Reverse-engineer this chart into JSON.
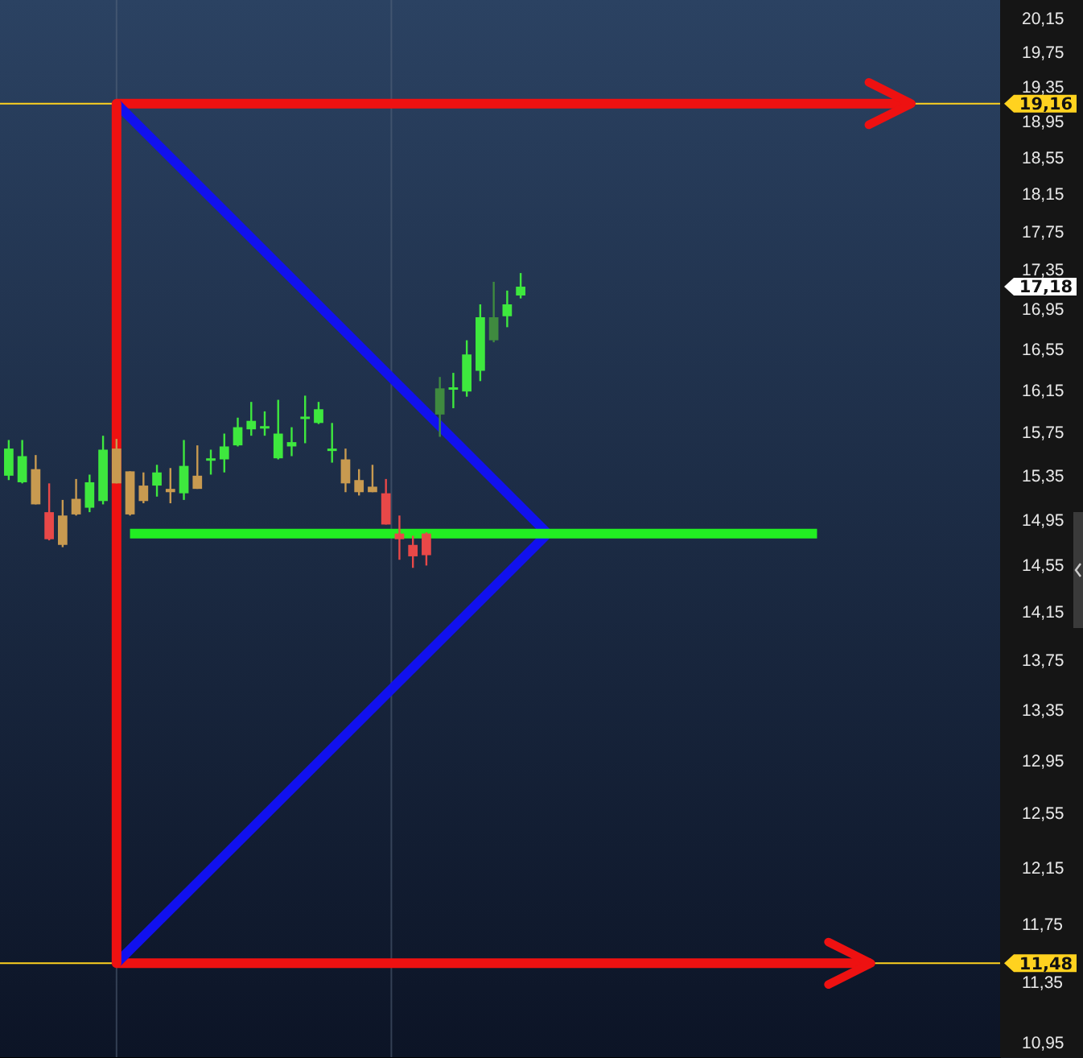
{
  "chart_data": {
    "type": "candlestick",
    "categories": [
      null,
      null,
      null,
      null,
      null,
      null,
      null,
      null,
      null,
      null,
      null,
      null,
      null,
      null,
      null,
      null,
      null,
      null,
      null,
      null,
      null,
      null,
      null,
      null,
      null,
      null,
      null,
      null,
      null,
      null,
      null,
      null,
      null,
      null,
      null,
      null,
      null,
      null,
      null,
      null,
      null,
      null,
      null,
      null,
      null,
      null,
      null,
      null,
      null,
      null,
      null,
      null,
      null,
      null,
      null,
      null,
      null,
      null,
      null,
      null,
      null,
      null,
      null,
      null,
      null,
      null,
      null,
      null,
      null,
      null,
      null,
      null,
      null,
      null
    ],
    "ohlc": [
      [
        15.35,
        15.68,
        15.31,
        15.6
      ],
      [
        15.29,
        15.68,
        15.28,
        15.53
      ],
      [
        15.41,
        15.54,
        15.09,
        15.09
      ],
      [
        15.02,
        15.28,
        14.77,
        14.78
      ],
      [
        14.99,
        15.13,
        14.71,
        14.73
      ],
      [
        15.14,
        15.32,
        14.99,
        15.0
      ],
      [
        15.06,
        15.36,
        15.02,
        15.29
      ],
      [
        15.12,
        15.72,
        15.09,
        15.59
      ],
      [
        15.6,
        15.69,
        15.28,
        15.28
      ],
      [
        15.39,
        15.39,
        14.99,
        15.0
      ],
      [
        15.26,
        15.38,
        15.1,
        15.12
      ],
      [
        15.26,
        15.45,
        15.16,
        15.38
      ],
      [
        15.23,
        15.42,
        15.1,
        15.2
      ],
      [
        15.19,
        15.68,
        15.13,
        15.44
      ],
      [
        15.35,
        15.63,
        15.23,
        15.23
      ],
      [
        15.5,
        15.59,
        15.36,
        15.51
      ],
      [
        15.5,
        15.74,
        15.38,
        15.62
      ],
      [
        15.63,
        15.89,
        15.62,
        15.8
      ],
      [
        15.78,
        16.04,
        15.72,
        15.86
      ],
      [
        15.8,
        15.95,
        15.72,
        15.81
      ],
      [
        15.51,
        16.06,
        15.5,
        15.74
      ],
      [
        15.62,
        15.8,
        15.53,
        15.66
      ],
      [
        15.89,
        16.1,
        15.65,
        15.9
      ],
      [
        15.84,
        16.04,
        15.83,
        15.97
      ],
      [
        15.59,
        15.84,
        15.47,
        15.6
      ],
      [
        15.5,
        15.6,
        15.2,
        15.28
      ],
      [
        15.31,
        15.41,
        15.17,
        15.2
      ],
      [
        15.25,
        15.45,
        15.2,
        15.2
      ],
      [
        15.19,
        15.32,
        14.91,
        14.91
      ],
      [
        14.83,
        14.99,
        14.6,
        14.78
      ],
      [
        14.73,
        14.81,
        14.53,
        14.63
      ],
      [
        14.83,
        14.84,
        14.55,
        14.64
      ],
      [
        16.17,
        16.28,
        15.71,
        15.92
      ],
      [
        16.17,
        16.32,
        15.98,
        16.18
      ],
      [
        16.14,
        16.64,
        16.09,
        16.5
      ],
      [
        16.34,
        17.0,
        16.24,
        16.87
      ],
      [
        16.87,
        17.23,
        16.62,
        16.64
      ],
      [
        16.88,
        17.14,
        16.77,
        17.0
      ],
      [
        17.09,
        17.32,
        17.06,
        17.18
      ],
      null,
      null,
      null,
      null,
      null,
      null,
      null,
      null,
      null,
      null,
      null,
      null,
      null,
      null,
      null,
      null,
      null,
      null,
      null,
      null,
      null,
      null,
      null,
      null,
      null,
      null,
      null,
      null,
      null,
      null,
      null,
      null,
      null,
      null,
      null
    ],
    "colors": [
      "#3ee83e",
      "#3ee83e",
      "#c89a50",
      "#e84848",
      "#c89a50",
      "#c89a50",
      "#3ee83e",
      "#3ee83e",
      "#c89a50",
      "#c89a50",
      "#c89a50",
      "#3ee83e",
      "#c89a50",
      "#3ee83e",
      "#c89a50",
      "#3ee83e",
      "#3ee83e",
      "#3ee83e",
      "#3ee83e",
      "#3ee83e",
      "#3ee83e",
      "#3ee83e",
      "#3ee83e",
      "#3ee83e",
      "#3ee83e",
      "#c89a50",
      "#c89a50",
      "#c89a50",
      "#e84848",
      "#e84848",
      "#e84848",
      "#e84848",
      "#3f8a3f",
      "#3ee83e",
      "#3ee83e",
      "#3ee83e",
      "#3f8a3f",
      "#3ee83e",
      "#3ee83e",
      null,
      null,
      null,
      null,
      null,
      null,
      null,
      null,
      null,
      null,
      null,
      null,
      null,
      null,
      null,
      null,
      null,
      null,
      null,
      null,
      null,
      null,
      null,
      null,
      null,
      null,
      null,
      null,
      null,
      null,
      null,
      null,
      null,
      null,
      null
    ],
    "series": [
      {
        "type": "line",
        "color": "#ee1111",
        "values": [
          null,
          null,
          null,
          null,
          null,
          null,
          null,
          null,
          19.16,
          null,
          null,
          null,
          null,
          null,
          null,
          null,
          null,
          null,
          null,
          null,
          null,
          null,
          null,
          null,
          null,
          null,
          null,
          null,
          null,
          null,
          null,
          null,
          null,
          null,
          null,
          null,
          null,
          null,
          null,
          null,
          null,
          null,
          null,
          null,
          null,
          null,
          null,
          null,
          null,
          null,
          null,
          null,
          null,
          null,
          null,
          null,
          null,
          null,
          null,
          null,
          null,
          null,
          null,
          null,
          null,
          null,
          null,
          19.16,
          null,
          null,
          null,
          null,
          null,
          null
        ]
      },
      {
        "type": "line",
        "color": "#ee1111",
        "values": [
          null,
          null,
          null,
          null,
          null,
          null,
          null,
          null,
          11.48,
          null,
          null,
          null,
          null,
          null,
          null,
          null,
          null,
          null,
          null,
          null,
          null,
          null,
          null,
          null,
          null,
          null,
          null,
          null,
          null,
          null,
          null,
          null,
          null,
          null,
          null,
          null,
          null,
          null,
          null,
          null,
          null,
          null,
          null,
          null,
          null,
          null,
          null,
          null,
          null,
          null,
          null,
          null,
          null,
          null,
          null,
          null,
          null,
          null,
          null,
          null,
          null,
          null,
          null,
          null,
          11.48,
          null,
          null,
          null,
          null,
          null,
          null,
          null,
          null,
          null
        ]
      },
      {
        "type": "line",
        "color": "#1111ee",
        "values": [
          null,
          null,
          null,
          null,
          null,
          null,
          null,
          null,
          19.16,
          null,
          null,
          null,
          null,
          null,
          null,
          null,
          null,
          null,
          null,
          null,
          null,
          null,
          null,
          null,
          null,
          null,
          null,
          null,
          null,
          null,
          null,
          null,
          null,
          null,
          null,
          null,
          null,
          null,
          null,
          null,
          14.83,
          null,
          null,
          null,
          null,
          null,
          null,
          null,
          null,
          null,
          null,
          null,
          null,
          null,
          null,
          null,
          null,
          null,
          null,
          null,
          null,
          null,
          null,
          null,
          null,
          null,
          null,
          null,
          null,
          null,
          null,
          null,
          null,
          null
        ]
      },
      {
        "type": "line",
        "color": "#1111ee",
        "values": [
          null,
          null,
          null,
          null,
          null,
          null,
          null,
          null,
          11.48,
          null,
          null,
          null,
          null,
          null,
          null,
          null,
          null,
          null,
          null,
          null,
          null,
          null,
          null,
          null,
          null,
          null,
          null,
          null,
          null,
          null,
          null,
          null,
          null,
          null,
          null,
          null,
          null,
          null,
          null,
          null,
          14.83,
          null,
          null,
          null,
          null,
          null,
          null,
          null,
          null,
          null,
          null,
          null,
          null,
          null,
          null,
          null,
          null,
          null,
          null,
          null,
          null,
          null,
          null,
          null,
          null,
          null,
          null,
          null,
          null,
          null,
          null,
          null,
          null,
          null
        ]
      },
      {
        "type": "line",
        "color": "#22ee22",
        "values": [
          null,
          null,
          null,
          null,
          null,
          null,
          null,
          null,
          null,
          14.83,
          null,
          null,
          null,
          null,
          null,
          null,
          null,
          null,
          null,
          null,
          null,
          null,
          null,
          null,
          null,
          null,
          null,
          null,
          null,
          null,
          null,
          null,
          null,
          null,
          null,
          null,
          null,
          null,
          null,
          null,
          null,
          null,
          null,
          null,
          null,
          null,
          null,
          null,
          null,
          null,
          null,
          null,
          null,
          null,
          null,
          null,
          null,
          null,
          null,
          null,
          14.83,
          null,
          null,
          null,
          null,
          null,
          null,
          null,
          null,
          null,
          null,
          null,
          null,
          null
        ]
      }
    ],
    "log": true,
    "ylim": [
      10.85,
      20.38
    ],
    "yticks": [
      {
        "value": 20.15,
        "label": "20,15"
      },
      {
        "value": 19.75,
        "label": "19,75"
      },
      {
        "value": 19.35,
        "label": "19,35"
      },
      {
        "value": 18.95,
        "label": "18,95"
      },
      {
        "value": 18.55,
        "label": "18,55"
      },
      {
        "value": 18.15,
        "label": "18,15"
      },
      {
        "value": 17.75,
        "label": "17,75"
      },
      {
        "value": 17.35,
        "label": "17,35"
      },
      {
        "value": 16.95,
        "label": "16,95"
      },
      {
        "value": 16.55,
        "label": "16,55"
      },
      {
        "value": 16.15,
        "label": "16,15"
      },
      {
        "value": 15.75,
        "label": "15,75"
      },
      {
        "value": 15.35,
        "label": "15,35"
      },
      {
        "value": 14.95,
        "label": "14,95"
      },
      {
        "value": 14.55,
        "label": "14,55"
      },
      {
        "value": 14.15,
        "label": "14,15"
      },
      {
        "value": 13.75,
        "label": "13,75"
      },
      {
        "value": 13.35,
        "label": "13,35"
      },
      {
        "value": 12.95,
        "label": "12,95"
      },
      {
        "value": 12.55,
        "label": "12,55"
      },
      {
        "value": 12.15,
        "label": "12,15"
      },
      {
        "value": 11.75,
        "label": "11,75"
      },
      {
        "value": 11.35,
        "label": "11,35"
      },
      {
        "value": 10.95,
        "label": "10,95"
      }
    ],
    "ref_lines": [
      {
        "axis": "y",
        "value": 19.16,
        "label": "19,16",
        "color": "#ffd21f"
      },
      {
        "axis": "y",
        "value": 11.48,
        "label": "11,48",
        "color": "#ffd21f"
      }
    ],
    "annotations": [
      "17,18"
    ]
  }
}
